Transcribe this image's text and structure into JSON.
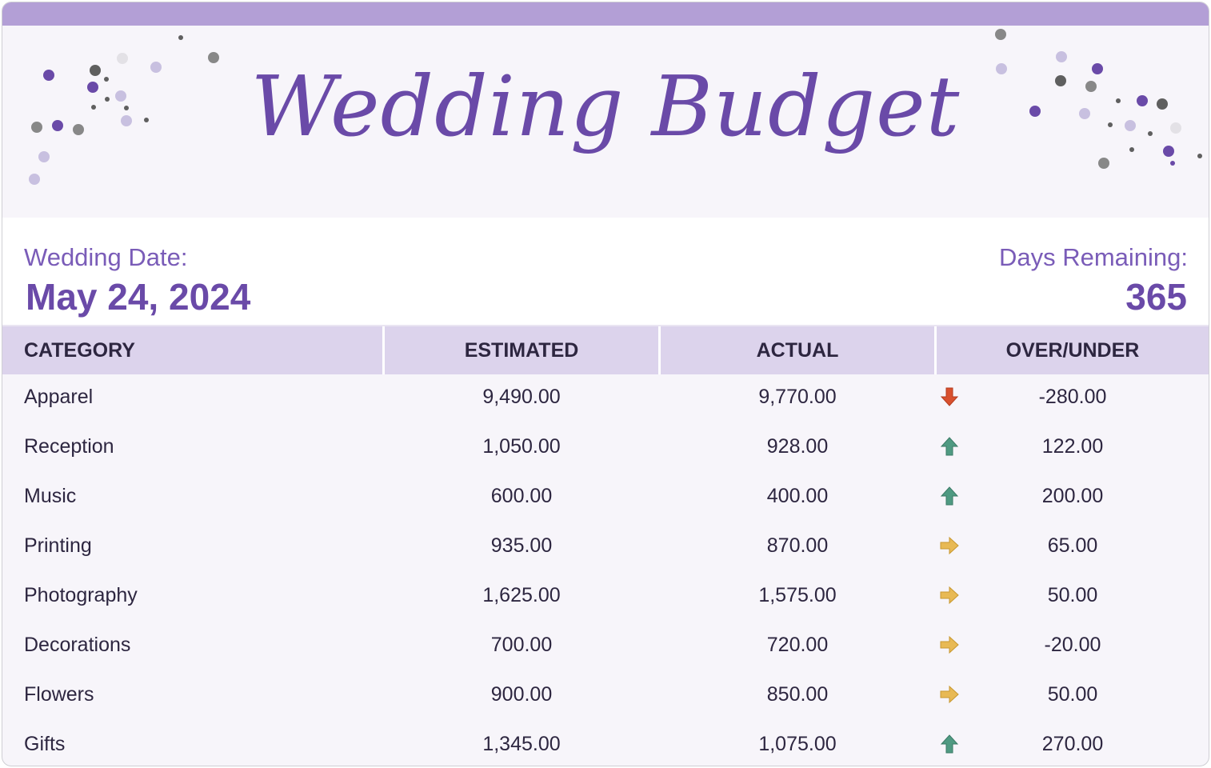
{
  "header": {
    "title": "Wedding Budget"
  },
  "wedding_date": {
    "label": "Wedding Date:",
    "value": "May 24, 2024"
  },
  "days_remaining": {
    "label": "Days Remaining:",
    "value": "365"
  },
  "colors": {
    "accent": "#6a4aa8",
    "topbar": "#b39fd6",
    "header_row": "#dcd3ec",
    "down": "#d9502e",
    "up": "#4f9a82",
    "neutral": "#e8b954"
  },
  "table": {
    "columns": [
      "CATEGORY",
      "ESTIMATED",
      "ACTUAL",
      "OVER/UNDER"
    ],
    "rows": [
      {
        "category": "Apparel",
        "estimated": "9,490.00",
        "actual": "9,770.00",
        "trend": "down-arrow",
        "over_under": "-280.00"
      },
      {
        "category": "Reception",
        "estimated": "1,050.00",
        "actual": "928.00",
        "trend": "up-arrow",
        "over_under": "122.00"
      },
      {
        "category": "Music",
        "estimated": "600.00",
        "actual": "400.00",
        "trend": "up-arrow",
        "over_under": "200.00"
      },
      {
        "category": "Printing",
        "estimated": "935.00",
        "actual": "870.00",
        "trend": "right-arrow",
        "over_under": "65.00"
      },
      {
        "category": "Photography",
        "estimated": "1,625.00",
        "actual": "1,575.00",
        "trend": "right-arrow",
        "over_under": "50.00"
      },
      {
        "category": "Decorations",
        "estimated": "700.00",
        "actual": "720.00",
        "trend": "right-arrow",
        "over_under": "-20.00"
      },
      {
        "category": "Flowers",
        "estimated": "900.00",
        "actual": "850.00",
        "trend": "right-arrow",
        "over_under": "50.00"
      },
      {
        "category": "Gifts",
        "estimated": "1,345.00",
        "actual": "1,075.00",
        "trend": "up-arrow",
        "over_under": "270.00"
      }
    ]
  }
}
